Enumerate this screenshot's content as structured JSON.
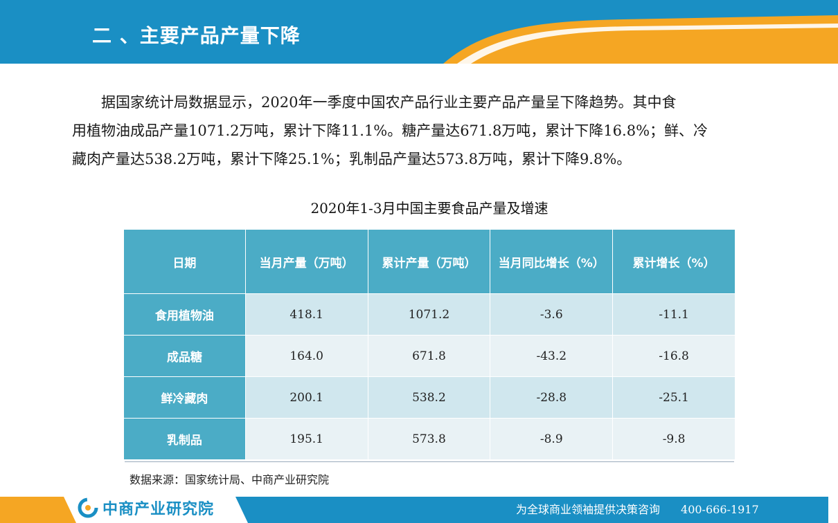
{
  "header": {
    "title": "二 、主要产品产量下降"
  },
  "paragraph": {
    "lines": [
      "据国家统计局数据显示，2020年一季度中国农产品行业主要产品产量呈下降趋势。其中食",
      "用植物油成品产量1071.2万吨，累计下降11.1%。糖产量达671.8万吨，累计下降16.8%；鲜、冷",
      "藏肉产量达538.2万吨，累计下降25.1%；乳制品产量达573.8万吨，累计下降9.8%。"
    ]
  },
  "table": {
    "title": "2020年1-3月中国主要食品产量及增速",
    "headers": [
      "日期",
      "当月产量（万吨）",
      "累计产量（万吨）",
      "当月同比增长（%）",
      "累计增长（%）"
    ],
    "rows": [
      {
        "label": "食用植物油",
        "monthly": "418.1",
        "cumulative": "1071.2",
        "monthly_yoy": "-3.6",
        "cumulative_growth": "-11.1"
      },
      {
        "label": "成品糖",
        "monthly": "164.0",
        "cumulative": "671.8",
        "monthly_yoy": "-43.2",
        "cumulative_growth": "-16.8"
      },
      {
        "label": "鲜冷藏肉",
        "monthly": "200.1",
        "cumulative": "538.2",
        "monthly_yoy": "-28.8",
        "cumulative_growth": "-25.1"
      },
      {
        "label": "乳制品",
        "monthly": "195.1",
        "cumulative": "573.8",
        "monthly_yoy": "-8.9",
        "cumulative_growth": "-9.8"
      }
    ],
    "source": "数据来源：国家统计局、中商产业研究院"
  },
  "footer": {
    "logo_text": "中商产业研究院",
    "slogan": "为全球商业领袖提供决策咨询",
    "phone": "400-666-1917"
  },
  "colors": {
    "header_blue": "#1a8fc4",
    "accent_orange": "#f5a623",
    "table_header": "#4bacc6",
    "row_odd": "#d0e7ee",
    "row_even": "#e9f2f5"
  }
}
